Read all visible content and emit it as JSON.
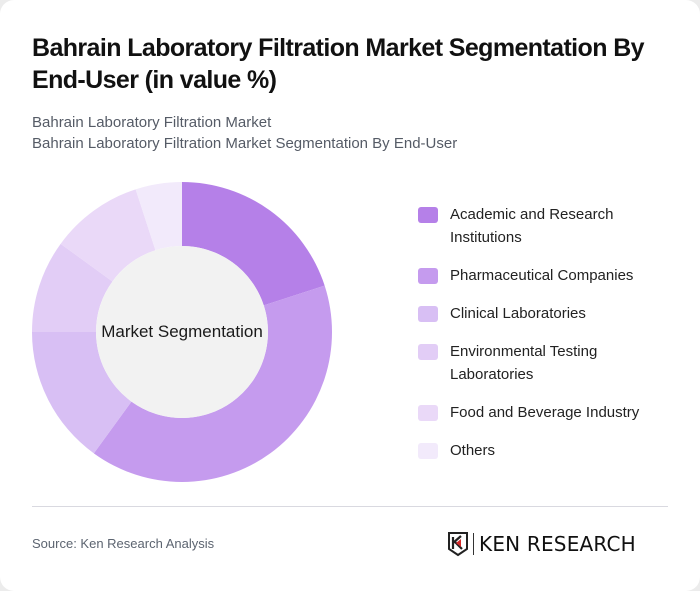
{
  "header": {
    "title": "Bahrain Laboratory Filtration Market Segmentation By End-User (in value %)",
    "subtitle_line1": "Bahrain Laboratory Filtration Market",
    "subtitle_line2": "Bahrain Laboratory Filtration Market Segmentation By End-User"
  },
  "chart": {
    "center_label": "Market Segmentation"
  },
  "legend": {
    "items": [
      {
        "label": "Academic and Research Institutions",
        "color": "#b580e8"
      },
      {
        "label": "Pharmaceutical Companies",
        "color": "#c59bee"
      },
      {
        "label": "Clinical Laboratories",
        "color": "#d8bff4"
      },
      {
        "label": "Environmental Testing Laboratories",
        "color": "#e2cdf6"
      },
      {
        "label": "Food and Beverage Industry",
        "color": "#ead9f8"
      },
      {
        "label": "Others",
        "color": "#f2eafb"
      }
    ]
  },
  "footer": {
    "source": "Source: Ken Research Analysis",
    "logo_text": "KEN RESEARCH"
  },
  "chart_data": {
    "type": "pie",
    "variant": "donut",
    "title": "Bahrain Laboratory Filtration Market Segmentation By End-User (in value %)",
    "center_label": "Market Segmentation",
    "categories": [
      "Academic and Research Institutions",
      "Pharmaceutical Companies",
      "Clinical Laboratories",
      "Environmental Testing Laboratories",
      "Food and Beverage Industry",
      "Others"
    ],
    "values": [
      20,
      40,
      15,
      10,
      10,
      5
    ],
    "colors": [
      "#b580e8",
      "#c59bee",
      "#d8bff4",
      "#e2cdf6",
      "#ead9f8",
      "#f2eafb"
    ],
    "legend_position": "right",
    "start_angle_deg": 0,
    "direction": "clockwise"
  }
}
